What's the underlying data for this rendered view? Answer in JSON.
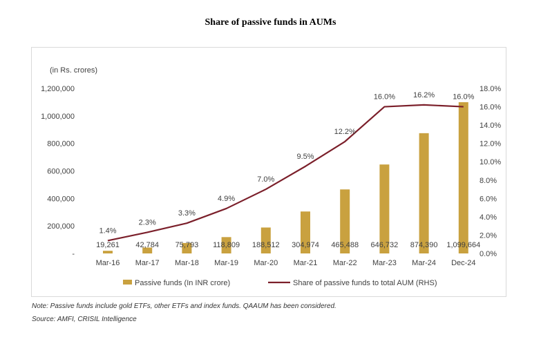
{
  "title": "Share of passive funds in AUMs",
  "note": "Note: Passive funds include gold ETFs, other ETFs and index funds. QAAUM has been considered.",
  "source": "Source: AMFI, CRISIL Intelligence",
  "colors": {
    "bar": "#C9A13F",
    "line": "#7B1F2A",
    "text": "#404040"
  },
  "chart_data": {
    "type": "bar",
    "title": "Share of passive funds in AUMs",
    "unit_label": "(in Rs. crores)",
    "categories": [
      "Mar-16",
      "Mar-17",
      "Mar-18",
      "Mar-19",
      "Mar-20",
      "Mar-21",
      "Mar-22",
      "Mar-23",
      "Mar-24",
      "Dec-24"
    ],
    "series": [
      {
        "name": "Passive funds (In INR crore)",
        "type": "bar",
        "axis": "left",
        "values": [
          19261,
          42784,
          75793,
          118809,
          188512,
          304974,
          465488,
          646732,
          874390,
          1099664
        ],
        "labels": [
          "19,261",
          "42,784",
          "75,793",
          "118,809",
          "188,512",
          "304,974",
          "465,488",
          "646,732",
          "874,390",
          "1,099,664"
        ]
      },
      {
        "name": "Share of passive funds to total AUM (RHS)",
        "type": "line",
        "axis": "right",
        "values": [
          1.4,
          2.3,
          3.3,
          4.9,
          7.0,
          9.5,
          12.2,
          16.0,
          16.2,
          16.0
        ],
        "labels": [
          "1.4%",
          "2.3%",
          "3.3%",
          "4.9%",
          "7.0%",
          "9.5%",
          "12.2%",
          "16.0%",
          "16.2%",
          "16.0%"
        ]
      }
    ],
    "y_left": {
      "range": [
        0,
        1200000
      ],
      "ticks": [
        0,
        200000,
        400000,
        600000,
        800000,
        1000000,
        1200000
      ],
      "tick_labels": [
        "-",
        "200,000",
        "400,000",
        "600,000",
        "800,000",
        "1,000,000",
        "1,200,000"
      ]
    },
    "y_right": {
      "range": [
        0,
        18
      ],
      "ticks": [
        0,
        2,
        4,
        6,
        8,
        10,
        12,
        14,
        16,
        18
      ],
      "tick_labels": [
        "0.0%",
        "2.0%",
        "4.0%",
        "6.0%",
        "8.0%",
        "10.0%",
        "12.0%",
        "14.0%",
        "16.0%",
        "18.0%"
      ]
    },
    "grid": false,
    "legend": "bottom"
  }
}
